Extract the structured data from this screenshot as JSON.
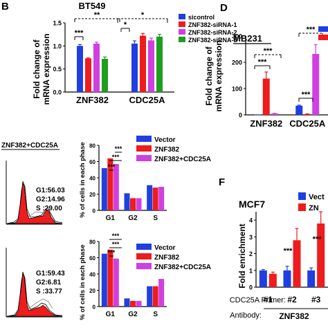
{
  "panels": {
    "B": {
      "letter": "B",
      "title": "BT549",
      "ylabel": [
        "Fold change of",
        "mRNA expression"
      ],
      "legend": [
        "sicontrol",
        "ZNF382-siRNA-1",
        "ZNF382-siRNA-2",
        "ZNF382-siRNA-3"
      ],
      "significance": [
        "**",
        "*",
        "***",
        "*"
      ]
    },
    "D": {
      "letter": "D",
      "title": "MB231",
      "ylabel": [
        "Fold change of",
        "mRNA expression"
      ],
      "significance": [
        "***",
        "***",
        "***",
        "***"
      ]
    },
    "cell_cycle": {
      "flow_title": "ZNF382+CDC25A",
      "flow_top_stats": [
        "G1:56.03",
        "G2:14.96",
        "S :29.00"
      ],
      "flow_bottom_stats": [
        "G1:59.43",
        "G2:6.81",
        "S :33.77"
      ],
      "ylabel": [
        "% of cells in each phase"
      ],
      "top_legend": [
        "Vector",
        "ZNF382",
        "ZNF382+CDC25A"
      ],
      "bottom_legend": [
        "Vector",
        "ZNF382",
        "ZNF382+CDC25A"
      ],
      "significance": [
        "***",
        "***",
        "***"
      ]
    },
    "F": {
      "letter": "F",
      "title": "MCF7",
      "ylabel": "Fold enrichment",
      "legend": [
        "Vect",
        "ZN"
      ],
      "primer_label": "CDC25A Primer:",
      "antibody_label": "Antibody:",
      "antibody": "ZNF382",
      "significance": [
        "***",
        "***"
      ]
    }
  },
  "colors": {
    "blue": "#1f3fe0",
    "red": "#ee1c1c",
    "magenta": "#d040e0",
    "green": "#1e9e1e"
  },
  "chart_data": [
    {
      "type": "bar",
      "title": "BT549",
      "ylabel": "Fold change of mRNA expression",
      "categories": [
        "ZNF382",
        "CDC25A"
      ],
      "ylim": [
        0,
        1.5
      ],
      "yticks": [
        0.0,
        0.5,
        1.0,
        1.5
      ],
      "series": [
        {
          "name": "sicontrol",
          "values": [
            1.0,
            1.05
          ],
          "errors": [
            0.03,
            0.06
          ]
        },
        {
          "name": "ZNF382-siRNA-1",
          "values": [
            0.73,
            1.22
          ],
          "errors": [
            0.01,
            0.05
          ]
        },
        {
          "name": "ZNF382-siRNA-2",
          "values": [
            1.05,
            1.12
          ],
          "errors": [
            0.03,
            0.05
          ]
        },
        {
          "name": "ZNF382-siRNA-3",
          "values": [
            0.72,
            1.2
          ],
          "errors": [
            0.04,
            0.05
          ]
        }
      ]
    },
    {
      "type": "bar",
      "title": "MB231",
      "ylabel": "Fold change of mRNA expression",
      "categories": [
        "ZNF382",
        "CDC25A"
      ],
      "ylim": [
        0,
        300
      ],
      "yticks": [
        0,
        100,
        200,
        300
      ],
      "series": [
        {
          "values": [
            1,
            35
          ],
          "errors": [
            0,
            2
          ]
        },
        {
          "values": [
            138,
            3
          ],
          "errors": [
            25,
            1
          ]
        },
        {
          "values": [
            5,
            232
          ],
          "errors": [
            1,
            35
          ]
        }
      ]
    },
    {
      "type": "bar",
      "ylabel": "% of cells in each phase",
      "categories": [
        "G1",
        "G2",
        "S"
      ],
      "ylim": [
        0,
        80
      ],
      "yticks": [
        0,
        20,
        40,
        60,
        80
      ],
      "series": [
        {
          "name": "Vector",
          "values": [
            52,
            21,
            31
          ]
        },
        {
          "name": "ZNF382",
          "values": [
            64,
            15,
            28
          ]
        },
        {
          "name": "ZNF382+CDC25A",
          "values": [
            57,
            15,
            29
          ]
        }
      ]
    },
    {
      "type": "bar",
      "ylabel": "% of cells in each phase",
      "categories": [
        "G1",
        "G2",
        "S"
      ],
      "ylim": [
        0,
        80
      ],
      "yticks": [
        0,
        20,
        40,
        60,
        80
      ],
      "series": [
        {
          "name": "Vector",
          "values": [
            65,
            10,
            25
          ]
        },
        {
          "name": "ZNF382",
          "values": [
            70,
            7,
            25
          ]
        },
        {
          "name": "ZNF382+CDC25A",
          "values": [
            59,
            7,
            34
          ]
        }
      ]
    },
    {
      "type": "bar",
      "title": "MCF7",
      "ylabel": "Fold enrichment",
      "categories": [
        "#1",
        "#2",
        "#3"
      ],
      "ylim": [
        0,
        4.5
      ],
      "yticks": [
        0,
        1,
        2,
        3,
        4
      ],
      "series": [
        {
          "name": "Vect",
          "values": [
            1.0,
            1.0,
            1.0
          ],
          "errors": [
            0.05,
            0.25,
            0.15
          ]
        },
        {
          "name": "ZN",
          "values": [
            0.8,
            2.8,
            3.8
          ],
          "errors": [
            0.1,
            0.7,
            0.7
          ]
        }
      ]
    }
  ]
}
